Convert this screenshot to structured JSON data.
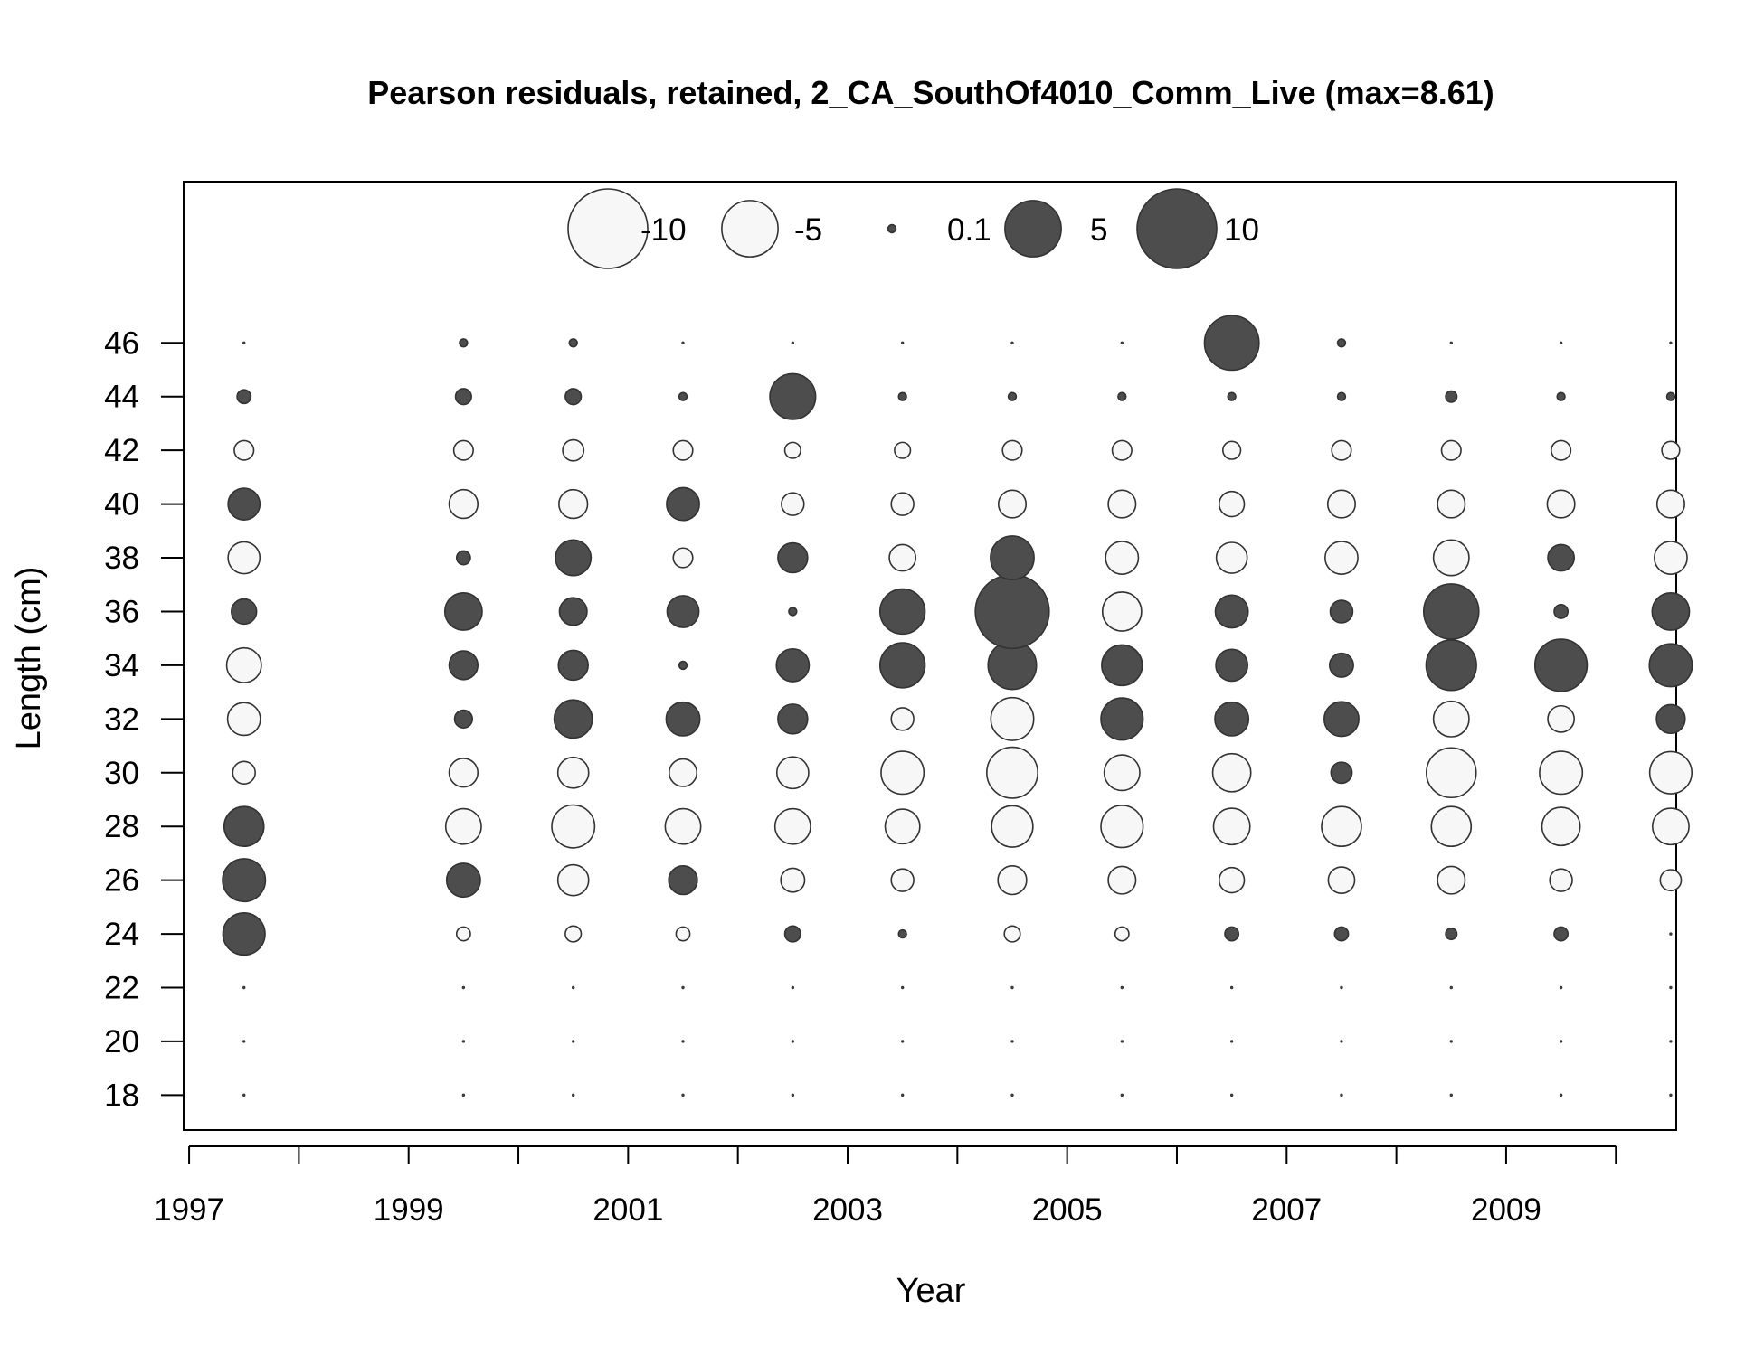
{
  "chart_data": {
    "type": "bubble",
    "title": "Pearson residuals, retained, 2_CA_SouthOf4010_Comm_Live (max=8.61)",
    "xlabel": "Year",
    "ylabel": "Length (cm)",
    "xlim": [
      1996.95,
      2010.55
    ],
    "ylim": [
      16.7,
      52.0
    ],
    "x_ticks": [
      1997,
      1998,
      1999,
      2000,
      2001,
      2002,
      2003,
      2004,
      2005,
      2006,
      2007,
      2008,
      2009,
      2010
    ],
    "x_tick_labels": [
      "1997",
      "1999",
      "2001",
      "2003",
      "2005",
      "2007",
      "2009"
    ],
    "y_ticks": [
      18,
      20,
      22,
      24,
      26,
      28,
      30,
      32,
      34,
      36,
      38,
      40,
      42,
      44,
      46
    ],
    "y_tick_labels": [
      "18",
      "20",
      "22",
      "24",
      "26",
      "28",
      "30",
      "32",
      "34",
      "36",
      "38",
      "40",
      "42",
      "44",
      "46"
    ],
    "grid": false,
    "legend": {
      "placement": "top-center",
      "entries": [
        {
          "label": "-10",
          "value": -10
        },
        {
          "label": "-5",
          "value": -5
        },
        {
          "label": "0.1",
          "value": 0.1
        },
        {
          "label": "5",
          "value": 5
        },
        {
          "label": "10",
          "value": 10
        }
      ]
    },
    "colors": {
      "positive": "#4d4d4d",
      "negative": "#f7f7f7",
      "stroke": "#333333"
    },
    "lengths": [
      18,
      20,
      22,
      24,
      26,
      28,
      30,
      32,
      34,
      36,
      38,
      40,
      42,
      44,
      46
    ],
    "years": [
      1997.5,
      1999.5,
      2000.5,
      2001.5,
      2002.5,
      2003.5,
      2004.5,
      2005.5,
      2006.5,
      2007.5,
      2008.5,
      2009.5,
      2010.5
    ],
    "series": [
      {
        "x": 1997.5,
        "residuals": [
          0,
          0,
          0,
          2.8,
          2.9,
          2.5,
          -0.8,
          -1.7,
          -1.9,
          1.0,
          -1.6,
          1.6,
          -0.6,
          0.3,
          0
        ]
      },
      {
        "x": 1999.5,
        "residuals": [
          0,
          0,
          0,
          -0.3,
          1.8,
          -2.0,
          -1.3,
          0.5,
          1.3,
          2.2,
          0.3,
          -1.3,
          -0.6,
          0.4,
          0.1
        ]
      },
      {
        "x": 2000.5,
        "residuals": [
          0,
          0,
          0,
          -0.4,
          -1.5,
          -2.9,
          -1.5,
          2.3,
          1.4,
          1.2,
          2.0,
          -1.3,
          -0.7,
          0.4,
          0.1
        ]
      },
      {
        "x": 2001.5,
        "residuals": [
          0,
          0,
          0,
          -0.3,
          1.3,
          -2.0,
          -1.2,
          1.8,
          0.1,
          1.6,
          -0.6,
          1.7,
          -0.6,
          0.1,
          0
        ]
      },
      {
        "x": 2002.5,
        "residuals": [
          0,
          0,
          0,
          0.4,
          -0.9,
          -2.0,
          -1.6,
          1.4,
          1.7,
          0.1,
          1.4,
          -0.8,
          -0.4,
          3.3,
          0
        ]
      },
      {
        "x": 2003.5,
        "residuals": [
          0,
          0,
          0,
          0.1,
          -0.8,
          -1.9,
          -2.9,
          -0.8,
          3.2,
          3.2,
          -1.1,
          -0.8,
          -0.4,
          0.1,
          0
        ]
      },
      {
        "x": 2004.5,
        "residuals": [
          0,
          0,
          0,
          -0.4,
          -1.3,
          -2.7,
          -4.1,
          -2.9,
          3.7,
          8.61,
          3.0,
          -1.2,
          -0.6,
          0.1,
          0
        ]
      },
      {
        "x": 2005.5,
        "residuals": [
          0,
          0,
          0,
          -0.3,
          -1.2,
          -2.8,
          -2.0,
          2.8,
          2.6,
          -2.4,
          -1.7,
          -1.2,
          -0.6,
          0.1,
          0
        ]
      },
      {
        "x": 2006.5,
        "residuals": [
          0,
          0,
          0,
          0.3,
          -1.0,
          -2.1,
          -2.3,
          1.8,
          1.6,
          1.7,
          -1.5,
          -1.0,
          -0.5,
          0.1,
          4.7
        ]
      },
      {
        "x": 2007.5,
        "residuals": [
          0,
          0,
          0,
          0.3,
          -1.1,
          -2.5,
          0.7,
          1.9,
          0.9,
          0.8,
          -1.7,
          -1.2,
          -0.6,
          0.1,
          0.1
        ]
      },
      {
        "x": 2008.5,
        "residuals": [
          0,
          0,
          0,
          0.2,
          -1.2,
          -2.5,
          -3.9,
          -2.0,
          4.0,
          4.8,
          -2.0,
          -1.2,
          -0.6,
          0.2,
          0
        ]
      },
      {
        "x": 2009.5,
        "residuals": [
          0,
          0,
          0,
          0.3,
          -0.8,
          -2.3,
          -2.9,
          -1.1,
          4.3,
          0.3,
          1.1,
          -1.2,
          -0.6,
          0.1,
          0
        ]
      },
      {
        "x": 2010.5,
        "residuals": [
          0,
          0,
          0,
          0,
          -0.7,
          -2.1,
          -2.8,
          1.3,
          2.9,
          2.2,
          -1.7,
          -1.2,
          -0.5,
          0.1,
          0
        ]
      }
    ]
  }
}
